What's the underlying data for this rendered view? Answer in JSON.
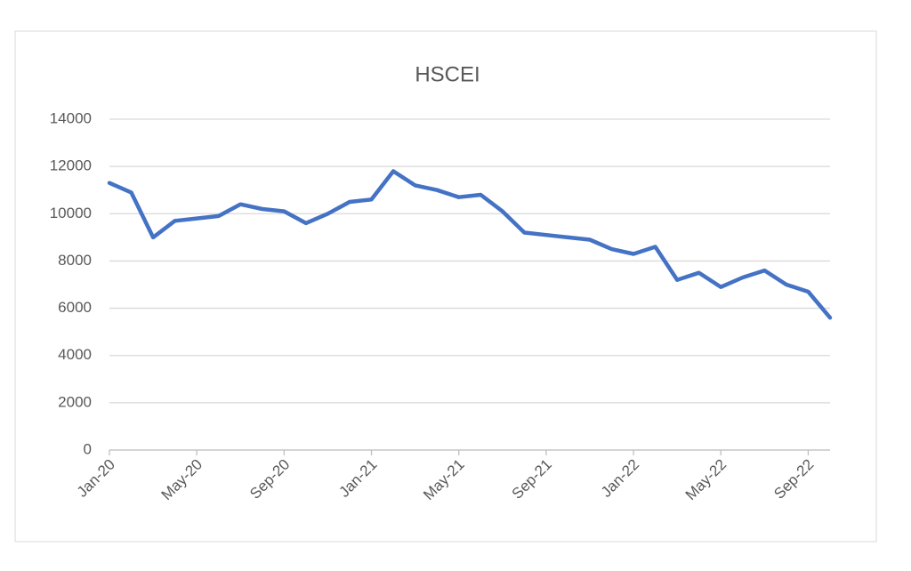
{
  "chart_data": {
    "type": "line",
    "title": "HSCEI",
    "x": [
      "2020-01",
      "2020-02",
      "2020-03",
      "2020-04",
      "2020-05",
      "2020-06",
      "2020-07",
      "2020-08",
      "2020-09",
      "2020-10",
      "2020-11",
      "2020-12",
      "2021-01",
      "2021-02",
      "2021-03",
      "2021-04",
      "2021-05",
      "2021-06",
      "2021-07",
      "2021-08",
      "2021-09",
      "2021-10",
      "2021-11",
      "2021-12",
      "2022-01",
      "2022-02",
      "2022-03",
      "2022-04",
      "2022-05",
      "2022-06",
      "2022-07",
      "2022-08",
      "2022-09",
      "2022-10"
    ],
    "series": [
      {
        "name": "HSCEI",
        "color": "#4472c4",
        "values": [
          11300,
          10900,
          9000,
          9700,
          9800,
          9900,
          10400,
          10200,
          10100,
          9600,
          10000,
          10500,
          10600,
          11800,
          11200,
          11000,
          10700,
          10800,
          10100,
          9200,
          9100,
          9000,
          8900,
          8500,
          8300,
          8600,
          7200,
          7500,
          6900,
          7300,
          7600,
          7000,
          6700,
          5600
        ]
      }
    ],
    "xlim": [
      "2020-01",
      "2022-10"
    ],
    "xticks": [
      {
        "value": "2020-01",
        "label": "Jan-20"
      },
      {
        "value": "2020-05",
        "label": "May-20"
      },
      {
        "value": "2020-09",
        "label": "Sep-20"
      },
      {
        "value": "2021-01",
        "label": "Jan-21"
      },
      {
        "value": "2021-05",
        "label": "May-21"
      },
      {
        "value": "2021-09",
        "label": "Sep-21"
      },
      {
        "value": "2022-01",
        "label": "Jan-22"
      },
      {
        "value": "2022-05",
        "label": "May-22"
      },
      {
        "value": "2022-09",
        "label": "Sep-22"
      }
    ],
    "ylim": [
      0,
      14000
    ],
    "yticks": [
      0,
      2000,
      4000,
      6000,
      8000,
      10000,
      12000,
      14000
    ],
    "grid": true
  }
}
